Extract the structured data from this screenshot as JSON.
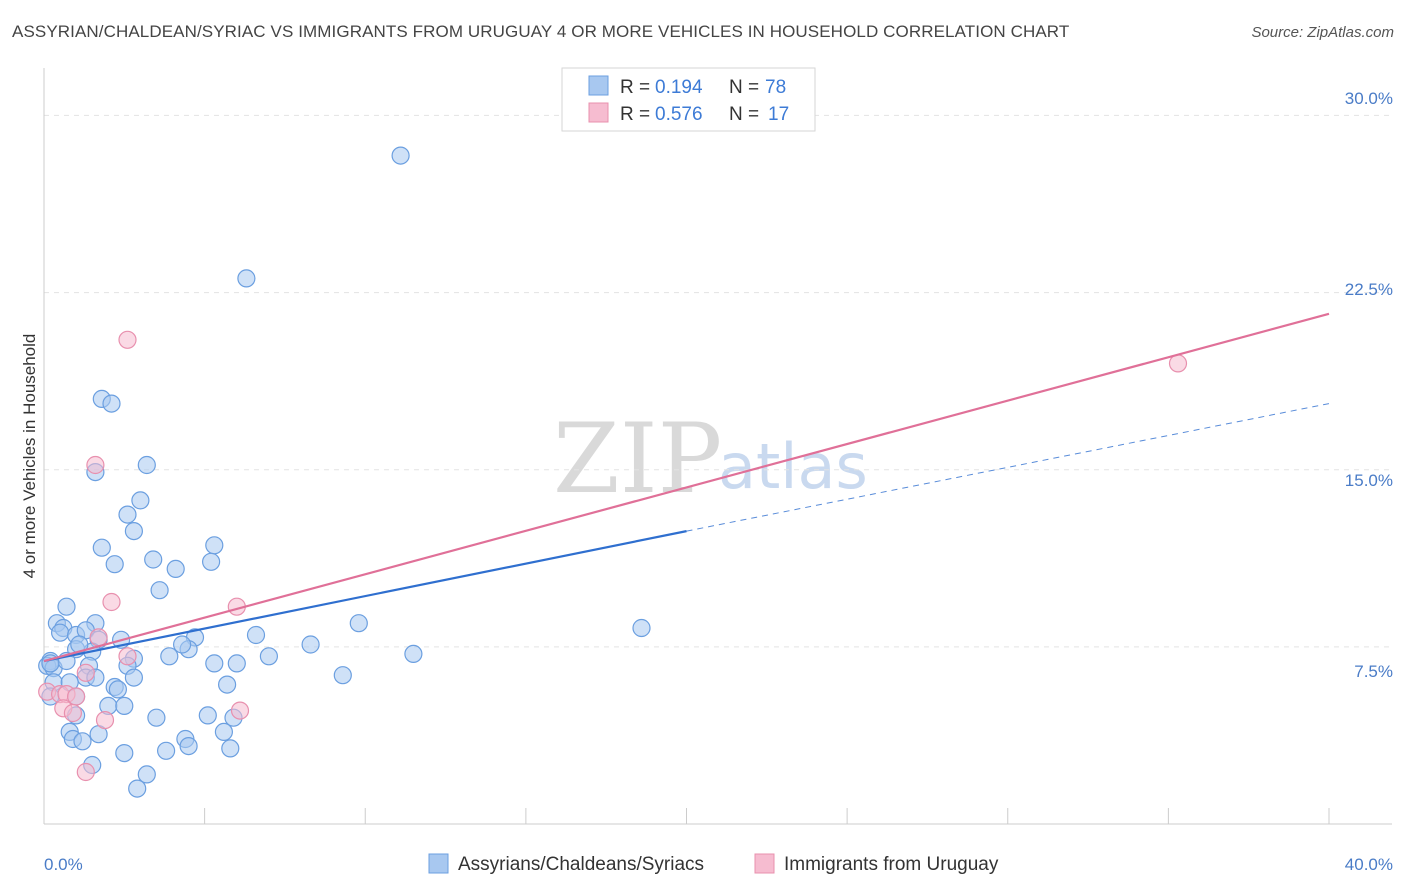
{
  "title": "ASSYRIAN/CHALDEAN/SYRIAC VS IMMIGRANTS FROM URUGUAY 4 OR MORE VEHICLES IN HOUSEHOLD CORRELATION CHART",
  "source": "Source: ZipAtlas.com",
  "watermark": {
    "zip": "ZIP",
    "atlas": "atlas"
  },
  "colors": {
    "blue_fill": "#a8c8f0",
    "blue_stroke": "#6b9fe0",
    "blue_line": "#2f6fcf",
    "pink_fill": "#f6bcd0",
    "pink_stroke": "#e890ae",
    "pink_line": "#e07098",
    "axis_label": "#4a7cc7",
    "grid": "#e3e3e3"
  },
  "legend": {
    "rows": [
      {
        "r_label": "R =",
        "r_value": "0.194",
        "n_label": "N =",
        "n_value": "78"
      },
      {
        "r_label": "R =",
        "r_value": "0.576",
        "n_label": "N =",
        "n_value": "17"
      }
    ]
  },
  "chart_data": {
    "type": "scatter",
    "title": "ASSYRIAN/CHALDEAN/SYRIAC VS IMMIGRANTS FROM URUGUAY 4 OR MORE VEHICLES IN HOUSEHOLD CORRELATION CHART",
    "xlabel": "",
    "ylabel": "4 or more Vehicles in Household",
    "xlim": [
      0,
      40
    ],
    "ylim": [
      0,
      31.5
    ],
    "x_tick_labels": [
      "0.0%",
      "40.0%"
    ],
    "y_ticks": [
      7.5,
      15.0,
      22.5,
      30.0
    ],
    "y_tick_labels": [
      "7.5%",
      "15.0%",
      "22.5%",
      "30.0%"
    ],
    "grid": true,
    "legend_position": "top-center",
    "series": [
      {
        "name": "Assyrians/Chaldeans/Syriacs",
        "color": "#a8c8f0",
        "r": 0.194,
        "n": 78,
        "trend": {
          "x0": 0,
          "y0": 6.9,
          "x1": 20,
          "y1": 12.4,
          "dashed_to_x": 40,
          "dashed_to_y": 17.8
        },
        "points": [
          [
            11.1,
            28.3
          ],
          [
            6.3,
            23.1
          ],
          [
            1.8,
            18.0
          ],
          [
            2.1,
            17.8
          ],
          [
            1.6,
            14.9
          ],
          [
            3.2,
            15.2
          ],
          [
            3.0,
            13.7
          ],
          [
            2.6,
            13.1
          ],
          [
            2.8,
            12.4
          ],
          [
            1.8,
            11.7
          ],
          [
            2.2,
            11.0
          ],
          [
            3.4,
            11.2
          ],
          [
            5.3,
            11.8
          ],
          [
            5.2,
            11.1
          ],
          [
            4.1,
            10.8
          ],
          [
            3.6,
            9.9
          ],
          [
            0.7,
            9.2
          ],
          [
            0.4,
            8.5
          ],
          [
            0.6,
            8.3
          ],
          [
            1.6,
            8.5
          ],
          [
            0.5,
            8.1
          ],
          [
            1.0,
            8.0
          ],
          [
            1.3,
            8.2
          ],
          [
            1.7,
            7.8
          ],
          [
            2.4,
            7.8
          ],
          [
            4.7,
            7.9
          ],
          [
            6.6,
            8.0
          ],
          [
            9.8,
            8.5
          ],
          [
            18.6,
            8.3
          ],
          [
            8.3,
            7.6
          ],
          [
            1.0,
            7.4
          ],
          [
            1.5,
            7.3
          ],
          [
            2.8,
            7.0
          ],
          [
            3.9,
            7.1
          ],
          [
            4.5,
            7.4
          ],
          [
            7.0,
            7.1
          ],
          [
            11.5,
            7.2
          ],
          [
            0.2,
            6.9
          ],
          [
            0.1,
            6.7
          ],
          [
            0.3,
            6.6
          ],
          [
            0.7,
            6.9
          ],
          [
            1.4,
            6.7
          ],
          [
            2.6,
            6.7
          ],
          [
            5.3,
            6.8
          ],
          [
            6.0,
            6.8
          ],
          [
            1.3,
            6.2
          ],
          [
            1.6,
            6.2
          ],
          [
            2.8,
            6.2
          ],
          [
            9.3,
            6.3
          ],
          [
            0.3,
            6.0
          ],
          [
            0.8,
            6.0
          ],
          [
            2.2,
            5.8
          ],
          [
            2.3,
            5.7
          ],
          [
            5.7,
            5.9
          ],
          [
            0.2,
            5.4
          ],
          [
            1.0,
            5.4
          ],
          [
            2.0,
            5.0
          ],
          [
            2.5,
            5.0
          ],
          [
            1.0,
            4.6
          ],
          [
            3.5,
            4.5
          ],
          [
            5.1,
            4.6
          ],
          [
            5.9,
            4.5
          ],
          [
            0.8,
            3.9
          ],
          [
            1.7,
            3.8
          ],
          [
            5.6,
            3.9
          ],
          [
            0.9,
            3.6
          ],
          [
            1.2,
            3.5
          ],
          [
            4.4,
            3.6
          ],
          [
            4.5,
            3.3
          ],
          [
            2.5,
            3.0
          ],
          [
            3.8,
            3.1
          ],
          [
            5.8,
            3.2
          ],
          [
            1.5,
            2.5
          ],
          [
            3.2,
            2.1
          ],
          [
            2.9,
            1.5
          ],
          [
            0.2,
            6.8
          ],
          [
            1.1,
            7.6
          ],
          [
            4.3,
            7.6
          ]
        ]
      },
      {
        "name": "Immigrants from Uruguay",
        "color": "#f6bcd0",
        "r": 0.576,
        "n": 17,
        "trend": {
          "x0": 0,
          "y0": 6.9,
          "x1": 40,
          "y1": 21.6
        },
        "points": [
          [
            2.6,
            20.5
          ],
          [
            35.3,
            19.5
          ],
          [
            1.6,
            15.2
          ],
          [
            2.1,
            9.4
          ],
          [
            6.0,
            9.2
          ],
          [
            1.7,
            7.9
          ],
          [
            2.6,
            7.1
          ],
          [
            1.3,
            6.4
          ],
          [
            0.1,
            5.6
          ],
          [
            0.5,
            5.5
          ],
          [
            0.7,
            5.5
          ],
          [
            1.0,
            5.4
          ],
          [
            0.6,
            4.9
          ],
          [
            0.9,
            4.7
          ],
          [
            6.1,
            4.8
          ],
          [
            1.9,
            4.4
          ],
          [
            1.3,
            2.2
          ]
        ]
      }
    ]
  },
  "bottom_legend": [
    {
      "label": "Assyrians/Chaldeans/Syriacs"
    },
    {
      "label": "Immigrants from Uruguay"
    }
  ]
}
